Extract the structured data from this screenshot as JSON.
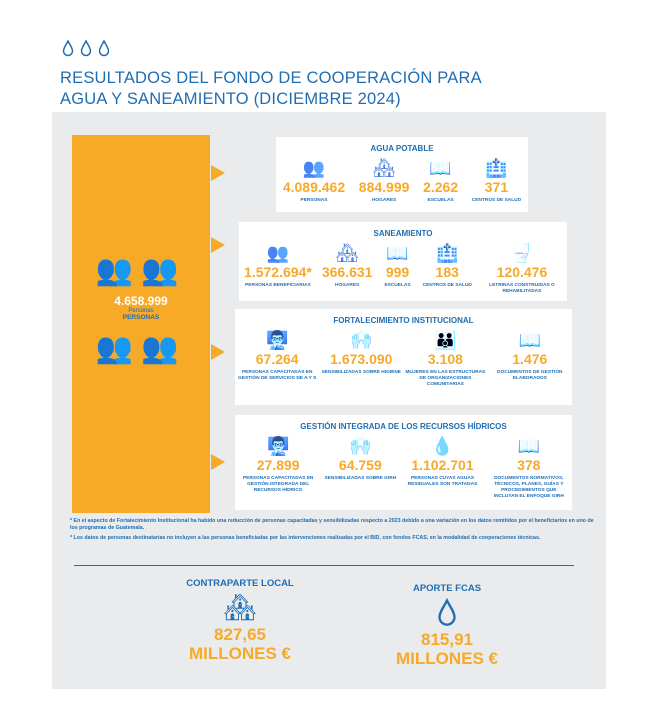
{
  "header": {
    "title_line1": "RESULTADOS DEL FONDO DE COOPERACIÓN PARA",
    "title_line2": "AGUA Y SANEAMIENTO (DICIEMBRE 2024)"
  },
  "total": {
    "value": "4.658.999",
    "sub": "Personas",
    "label": "PERSONAS"
  },
  "sections": [
    {
      "title": "AGUA POTABLE",
      "items": [
        {
          "icon": "people-icon",
          "value": "4.089.462",
          "label": "PERSONAS"
        },
        {
          "icon": "house-icon",
          "value": "884.999",
          "label": "HOGARES"
        },
        {
          "icon": "book-icon",
          "value": "2.262",
          "label": "ESCUELAS"
        },
        {
          "icon": "hospital-icon",
          "value": "371",
          "label": "CENTROS DE SALUD"
        }
      ]
    },
    {
      "title": "SANEAMIENTO",
      "items": [
        {
          "icon": "people-icon",
          "value": "1.572.694*",
          "label": "PERSONAS BENEFICIARIAS"
        },
        {
          "icon": "house-icon",
          "value": "366.631",
          "label": "HOGARES"
        },
        {
          "icon": "book-icon",
          "value": "999",
          "label": "ESCUELAS"
        },
        {
          "icon": "hospital-icon",
          "value": "183",
          "label": "CENTROS DE SALUD"
        },
        {
          "icon": "toilet-icon",
          "value": "120.476",
          "label": "LETRINAS CONSTRUIDAS O REHABILITADAS"
        }
      ]
    },
    {
      "title": "FORTALECIMIENTO INSTITUCIONAL",
      "items": [
        {
          "icon": "training-icon",
          "value": "67.264",
          "label": "PERSONAS CAPACITADAS EN GESTIÓN DE SERVICIOS DE A Y S"
        },
        {
          "icon": "handwashing-icon",
          "value": "1.673.090",
          "label": "SENSIBILIZADAS SOBRE HIGIENE"
        },
        {
          "icon": "group-icon",
          "value": "3.108",
          "label": "MUJERES EN LAS ESTRUCTURAS DE ORGANIZACIONES COMUNITARIAS"
        },
        {
          "icon": "book-icon",
          "value": "1.476",
          "label": "DOCUMENTOS DE GESTIÓN ELABORADOS"
        }
      ]
    },
    {
      "title": "GESTIÓN INTEGRADA DE LOS RECURSOS HÍDRICOS",
      "items": [
        {
          "icon": "training-icon",
          "value": "27.899",
          "label": "PERSONAS CAPACITADAS EN GESTIÓN INTEGRADA DEL RECURSOS HÍDRICO"
        },
        {
          "icon": "handwashing-icon",
          "value": "64.759",
          "label": "SENSIBILIZADAS SOBRE GIRH"
        },
        {
          "icon": "wastewater-icon",
          "value": "1.102.701",
          "label": "PERSONAS CUYAS AGUAS RESIDUALES SON TRATADAS"
        },
        {
          "icon": "book-icon",
          "value": "378",
          "label": "DOCUMENTOS NORMATIVOS, TÉCNICOS, PLANES, GUÍAS Y PROCEDIMIENTOS QUE INCLUYAN EL ENFOQUE GIRH"
        }
      ]
    }
  ],
  "notes": [
    "* En el aspecto de Fortalecimiento Institucional ha habido una reducción de personas capacitadas y sensibilizadas respecto a 2023 debido a una variación en los datos remitidos por el beneficiarios en uno de los programas de Guatemala.",
    "* Los datos de personas destinatarias no incluyen a las personas beneficiadas por las intervenciones realizadas por el BID, con fondos FCAS, en la modalidad de cooperaciones técnicas."
  ],
  "funding": [
    {
      "label": "CONTRAPARTE LOCAL",
      "value": "827,65",
      "unit": "MILLONES €",
      "icon": "house-icon"
    },
    {
      "label": "APORTE FCAS",
      "value": "815,91",
      "unit": "MILLONES €",
      "icon": "water-drop-icon"
    }
  ],
  "colors": {
    "blue": "#1f6db3",
    "orange": "#f7a928",
    "panel": "#e9ebec"
  }
}
